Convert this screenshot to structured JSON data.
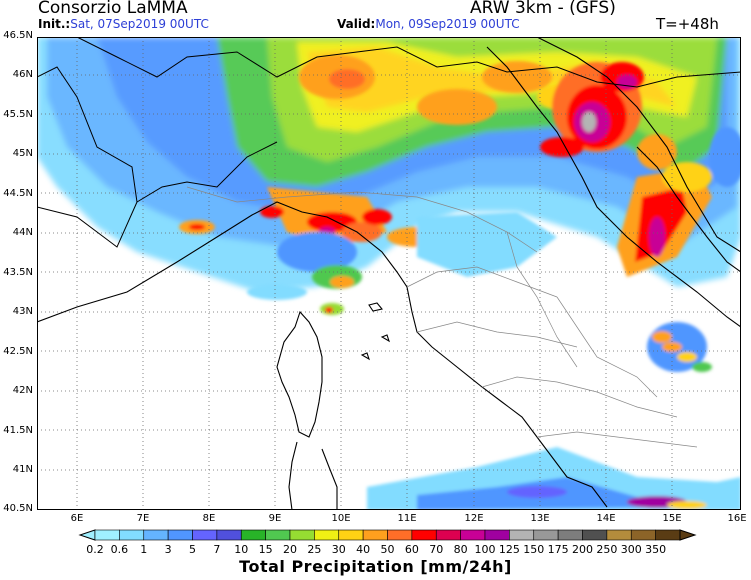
{
  "header": {
    "organization": "Consorzio LaMMA",
    "model": "ARW 3km - (GFS)",
    "init_label": "Init.:",
    "init_value": "Sat, 07Sep2019 00UTC",
    "valid_label": "Valid:",
    "valid_value": "Mon, 09Sep2019 00UTC",
    "timestep": "T=+48h"
  },
  "map": {
    "region": "Central Italy / Corsica / Ligurian & Tyrrhenian Sea",
    "latitude_labels": [
      "46.5N",
      "46N",
      "45.5N",
      "45N",
      "44.5N",
      "44N",
      "43.5N",
      "43N",
      "42.5N",
      "42N",
      "41.5N",
      "41N",
      "40.5N"
    ],
    "longitude_labels": [
      "6E",
      "7E",
      "8E",
      "9E",
      "10E",
      "11E",
      "12E",
      "13E",
      "14E",
      "15E",
      "16E"
    ],
    "grid": "dotted",
    "sea_color": "#ffffff",
    "land_color": "#ffffff"
  },
  "colorbar": {
    "title": "Total Precipitation [mm/24h]",
    "ticks": [
      "0.2",
      "0.6",
      "1",
      "3",
      "5",
      "7",
      "10",
      "15",
      "20",
      "25",
      "30",
      "40",
      "50",
      "60",
      "70",
      "80",
      "100",
      "125",
      "150",
      "175",
      "200",
      "250",
      "300",
      "350"
    ],
    "colors": [
      "#a0f0ff",
      "#82dcff",
      "#64b4ff",
      "#5096ff",
      "#6464ff",
      "#5050dc",
      "#28b428",
      "#50c850",
      "#96dc32",
      "#f0f014",
      "#ffd214",
      "#ffa01e",
      "#ff6e28",
      "#ff0000",
      "#dc0050",
      "#c80096",
      "#a000a0",
      "#b4b4b4",
      "#999999",
      "#7d7d7d",
      "#505050",
      "#b48c3c",
      "#8c6428",
      "#5a3c14"
    ]
  }
}
